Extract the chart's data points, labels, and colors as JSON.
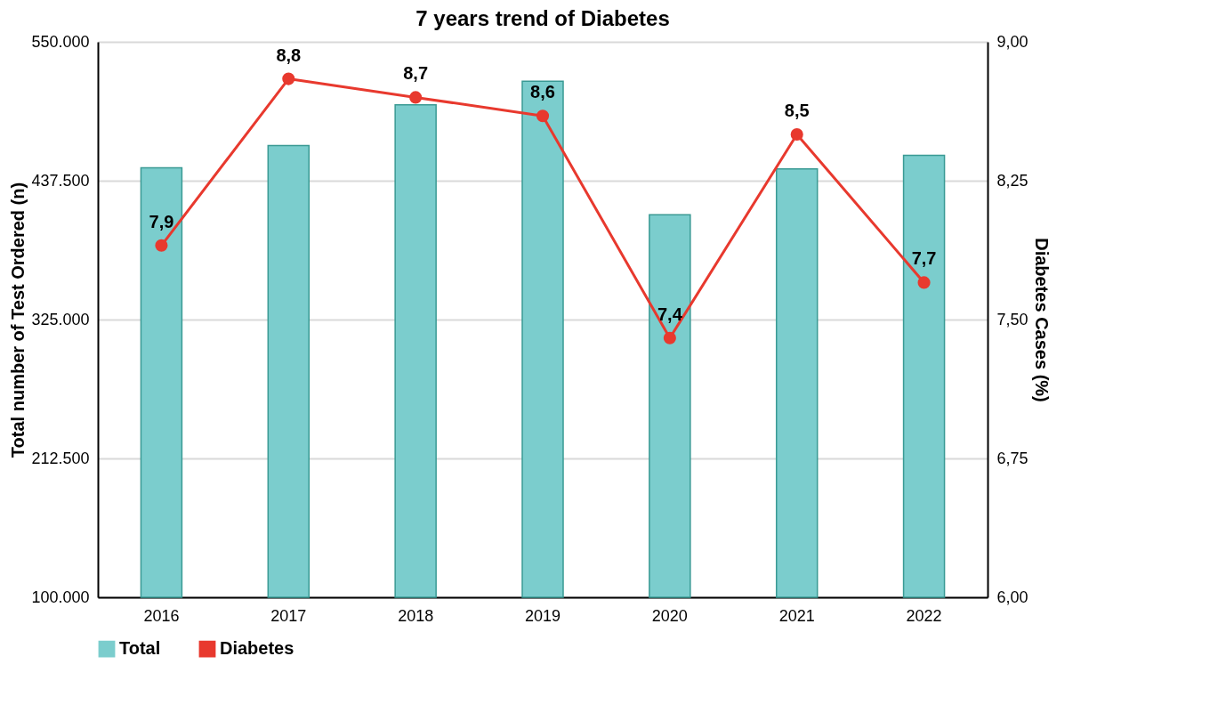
{
  "chart_data": {
    "type": "bar",
    "title": "7 years trend of Diabetes",
    "ylabel": "Total number of Test Ordered (n)",
    "y2label": "Diabetes Cases (%)",
    "categories": [
      "2016",
      "2017",
      "2018",
      "2019",
      "2020",
      "2021",
      "2022"
    ],
    "series": [
      {
        "name": "Total",
        "color": "#7bcdcd",
        "values": [
          448000,
          466000,
          499000,
          518000,
          410000,
          447000,
          458000
        ]
      },
      {
        "name": "Diabetes",
        "type": "line",
        "axis": "y2",
        "color": "#e8392e",
        "marker": "circle",
        "values": [
          7.9,
          8.8,
          8.7,
          8.6,
          7.4,
          8.5,
          7.7
        ],
        "value_labels": [
          "7,9",
          "8,8",
          "8,7",
          "8,6",
          "7,4",
          "8,5",
          "7,7"
        ]
      }
    ],
    "ylim": [
      100000,
      550000
    ],
    "yticks": [
      {
        "value": 100000,
        "label": "100.000"
      },
      {
        "value": 212500,
        "label": "212.500"
      },
      {
        "value": 325000,
        "label": "325.000"
      },
      {
        "value": 437500,
        "label": "437.500"
      },
      {
        "value": 550000,
        "label": "550.000"
      }
    ],
    "y2lim": [
      6,
      9
    ],
    "y2ticks": [
      {
        "value": 6,
        "label": "6,00"
      },
      {
        "value": 6.75,
        "label": "6,75"
      },
      {
        "value": 7.5,
        "label": "7,50"
      },
      {
        "value": 8.25,
        "label": "8,25"
      },
      {
        "value": 9,
        "label": "9,00"
      }
    ],
    "grid": "y",
    "legend": "bottom"
  }
}
